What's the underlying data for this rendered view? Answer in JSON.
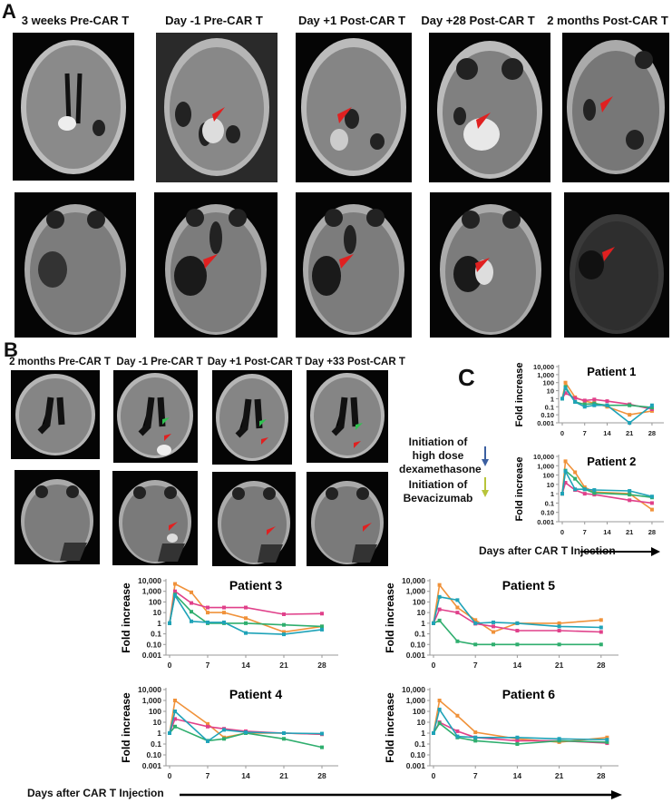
{
  "panelA": {
    "letter": "A",
    "timepoints": [
      "3 weeks Pre-CAR T",
      "Day -1 Pre-CAR T",
      "Day +1 Post-CAR T",
      "Day +28 Post-CAR T",
      "2 months Post-CAR T"
    ]
  },
  "panelB": {
    "letter": "B",
    "timepoints": [
      "2 months Pre-CAR T",
      "Day -1 Pre-CAR T",
      "Day +1 Post-CAR T",
      "Day +33 Post-CAR T"
    ]
  },
  "panelC": {
    "letter": "C",
    "legend": {
      "dexamethasone": "Initiation of high dose dexamethasone",
      "dexamethasone_lines": [
        "Initiation of",
        "high dose",
        "dexamethasone"
      ],
      "bevacizumab_lines": [
        "Initiation of",
        "Bevacizumab"
      ],
      "dexamethasone_arrow_color": "#3b5fa0",
      "bevacizumab_arrow_color": "#b8c43a"
    },
    "xlabel": "Days after CAR T Injection",
    "ylabel": "Fold increase"
  },
  "colors": {
    "orange": "#f0923a",
    "magenta": "#e0408a",
    "green": "#2fae6e",
    "teal": "#1fa3b8",
    "arrow_red": "#e02020",
    "arrow_green": "#30c050"
  },
  "chart_data": [
    {
      "type": "line",
      "title": "Patient 1",
      "xlabel": "Days after CAR T Injection",
      "ylabel": "Fold increase",
      "yscale": "log",
      "ytick_labels": [
        "0.001",
        "0.10",
        "0.1",
        "1",
        "10",
        "100",
        "1,000",
        "10,000"
      ],
      "xticks": [
        0,
        7,
        14,
        21,
        28
      ],
      "x": [
        0,
        1,
        4,
        7,
        10,
        14,
        21,
        28
      ],
      "series": [
        {
          "name": "orange",
          "color": "#f0923a",
          "values": [
            1,
            100,
            1.5,
            0.5,
            0.3,
            0.1,
            0.01,
            0.03
          ]
        },
        {
          "name": "magenta",
          "color": "#e0408a",
          "values": [
            1,
            5,
            1.2,
            0.6,
            0.8,
            0.5,
            0.2,
            0.05
          ]
        },
        {
          "name": "green",
          "color": "#2fae6e",
          "values": [
            1,
            30,
            0.4,
            0.2,
            0.25,
            0.15,
            0.15,
            0.08
          ]
        },
        {
          "name": "teal",
          "color": "#1fa3b8",
          "values": [
            1,
            20,
            0.4,
            0.1,
            0.15,
            0.15,
            0.001,
            0.15
          ]
        }
      ]
    },
    {
      "type": "line",
      "title": "Patient 2",
      "xlabel": "Days after CAR T Injection",
      "ylabel": "Fold increase",
      "yscale": "log",
      "ytick_labels": [
        "0.001",
        "0.10",
        "0.1",
        "1",
        "10",
        "100",
        "1,000",
        "10,000"
      ],
      "xticks": [
        0,
        7,
        14,
        21,
        28
      ],
      "x": [
        0,
        1,
        4,
        7,
        10,
        21,
        28
      ],
      "series": [
        {
          "name": "orange",
          "color": "#f0923a",
          "values": [
            1,
            3000,
            200,
            5,
            1.5,
            1,
            0.02
          ]
        },
        {
          "name": "magenta",
          "color": "#e0408a",
          "values": [
            1,
            15,
            2.5,
            1,
            0.8,
            0.2,
            0.1
          ]
        },
        {
          "name": "green",
          "color": "#2fae6e",
          "values": [
            1,
            300,
            40,
            3,
            1.2,
            0.8,
            0.4
          ]
        },
        {
          "name": "teal",
          "color": "#1fa3b8",
          "values": [
            1,
            250,
            3,
            3,
            2.5,
            2,
            0.5
          ]
        }
      ]
    },
    {
      "type": "line",
      "title": "Patient 3",
      "xlabel": "Days after CAR T Injection",
      "ylabel": "Fold increase",
      "yscale": "log",
      "ytick_labels": [
        "0.001",
        "0.10",
        "0.1",
        "1",
        "10",
        "100",
        "1,000",
        "10,000"
      ],
      "xticks": [
        0,
        7,
        14,
        21,
        28
      ],
      "x": [
        0,
        1,
        4,
        7,
        10,
        14,
        21,
        28
      ],
      "series": [
        {
          "name": "orange",
          "color": "#f0923a",
          "values": [
            1,
            5000,
            800,
            10,
            10,
            3,
            0.15,
            0.5
          ]
        },
        {
          "name": "magenta",
          "color": "#e0408a",
          "values": [
            1,
            1000,
            80,
            30,
            30,
            30,
            7,
            8
          ]
        },
        {
          "name": "green",
          "color": "#2fae6e",
          "values": [
            1,
            500,
            12,
            1,
            1,
            1,
            0.7,
            0.5
          ]
        },
        {
          "name": "teal",
          "color": "#1fa3b8",
          "values": [
            1,
            400,
            1.5,
            1.2,
            1.2,
            0.12,
            0.09,
            0.25
          ]
        }
      ]
    },
    {
      "type": "line",
      "title": "Patient 4",
      "xlabel": "Days after CAR T Injection",
      "ylabel": "Fold increase",
      "yscale": "log",
      "ytick_labels": [
        "0.001",
        "0.10",
        "0.1",
        "1",
        "10",
        "100",
        "1,000",
        "10,000"
      ],
      "xticks": [
        0,
        7,
        14,
        21,
        28
      ],
      "x": [
        0,
        1,
        7,
        10,
        14,
        21,
        28
      ],
      "series": [
        {
          "name": "orange",
          "color": "#f0923a",
          "values": [
            1,
            1000,
            7,
            0.4,
            1,
            1,
            0.8
          ]
        },
        {
          "name": "magenta",
          "color": "#e0408a",
          "values": [
            1,
            20,
            4,
            2.5,
            1.5,
            1,
            0.8
          ]
        },
        {
          "name": "green",
          "color": "#2fae6e",
          "values": [
            1,
            4,
            0.2,
            0.3,
            1,
            0.3,
            0.05
          ]
        },
        {
          "name": "teal",
          "color": "#1fa3b8",
          "values": [
            1,
            100,
            0.18,
            2,
            1.2,
            1,
            0.9
          ]
        }
      ]
    },
    {
      "type": "line",
      "title": "Patient 5",
      "xlabel": "Days after CAR T Injection",
      "ylabel": "Fold increase",
      "yscale": "log",
      "ytick_labels": [
        "0.001",
        "0.10",
        "0.1",
        "1",
        "10",
        "100",
        "1,000",
        "10,000"
      ],
      "xticks": [
        0,
        7,
        14,
        21,
        28
      ],
      "x": [
        0,
        1,
        4,
        7,
        10,
        14,
        21,
        28
      ],
      "series": [
        {
          "name": "orange",
          "color": "#f0923a",
          "values": [
            1,
            4000,
            30,
            2,
            0.15,
            1,
            1,
            2
          ]
        },
        {
          "name": "magenta",
          "color": "#e0408a",
          "values": [
            1,
            20,
            10,
            0.9,
            0.5,
            0.2,
            0.2,
            0.15
          ]
        },
        {
          "name": "green",
          "color": "#2fae6e",
          "values": [
            1,
            1.8,
            0.02,
            0.01,
            0.01,
            0.01,
            0.01,
            0.01
          ]
        },
        {
          "name": "teal",
          "color": "#1fa3b8",
          "values": [
            1,
            300,
            150,
            1,
            1.2,
            1,
            0.5,
            0.4
          ]
        }
      ]
    },
    {
      "type": "line",
      "title": "Patient 6",
      "xlabel": "Days after CAR T Injection",
      "ylabel": "Fold increase",
      "yscale": "log",
      "ytick_labels": [
        "0.001",
        "0.10",
        "0.1",
        "1",
        "10",
        "100",
        "1,000",
        "10,000"
      ],
      "xticks": [
        0,
        7,
        14,
        21,
        28
      ],
      "x": [
        0,
        1,
        4,
        7,
        14,
        21,
        29
      ],
      "series": [
        {
          "name": "orange",
          "color": "#f0923a",
          "values": [
            1,
            1000,
            40,
            1.2,
            0.3,
            0.15,
            0.4
          ]
        },
        {
          "name": "magenta",
          "color": "#e0408a",
          "values": [
            1,
            10,
            1.5,
            0.4,
            0.2,
            0.2,
            0.12
          ]
        },
        {
          "name": "green",
          "color": "#2fae6e",
          "values": [
            1,
            8,
            0.4,
            0.2,
            0.1,
            0.2,
            0.15
          ]
        },
        {
          "name": "teal",
          "color": "#1fa3b8",
          "values": [
            1,
            150,
            0.5,
            0.4,
            0.4,
            0.3,
            0.25
          ]
        }
      ]
    }
  ]
}
